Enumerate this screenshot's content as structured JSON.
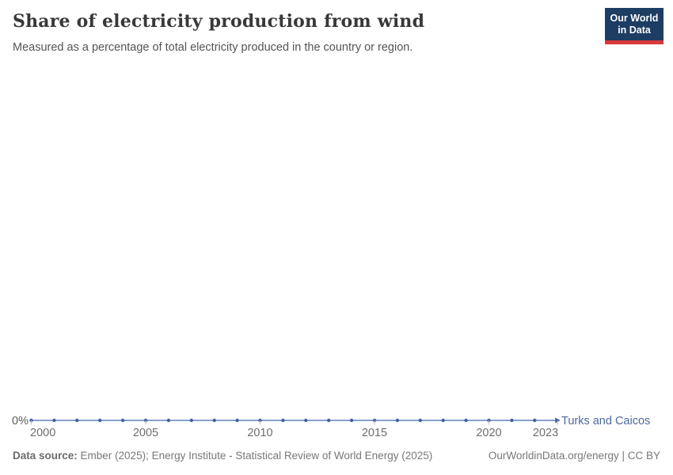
{
  "header": {
    "title": "Share of electricity production from wind",
    "subtitle": "Measured as a percentage of total electricity produced in the country or region.",
    "logo": {
      "line1": "Our World",
      "line2": "in Data",
      "bg_color": "#1d3d63",
      "bar_color": "#d93a3a"
    }
  },
  "chart_data": {
    "type": "line",
    "title": "Share of electricity production from wind",
    "entity_label": "Turks and Caicos",
    "x": [
      2000,
      2001,
      2002,
      2003,
      2004,
      2005,
      2006,
      2007,
      2008,
      2009,
      2010,
      2011,
      2012,
      2013,
      2014,
      2015,
      2016,
      2017,
      2018,
      2019,
      2020,
      2021,
      2022,
      2023
    ],
    "series": [
      {
        "name": "Turks and Caicos",
        "values": [
          0,
          0,
          0,
          0,
          0,
          0,
          0,
          0,
          0,
          0,
          0,
          0,
          0,
          0,
          0,
          0,
          0,
          0,
          0,
          0,
          0,
          0,
          0,
          0
        ]
      }
    ],
    "unit": "%",
    "y_axis_label": "0%",
    "x_ticks": [
      2000,
      2005,
      2010,
      2015,
      2020,
      2023
    ],
    "y_ticks": [
      "0%"
    ],
    "grid": false,
    "legend_position": "end-of-line",
    "line_color": "#8aa2cc",
    "marker_color": "#44619b",
    "entity_label_color": "#4c6a9c",
    "tick_label_color": "#6e6e6e",
    "axis_label_color": "#5b5b5b",
    "tick_mark_color": "#bbbbbb"
  },
  "footer": {
    "source_label": "Data source:",
    "source_text": " Ember (2025); Energy Institute - Statistical Review of World Energy (2025)",
    "right_text": "OurWorldinData.org/energy | CC BY"
  }
}
